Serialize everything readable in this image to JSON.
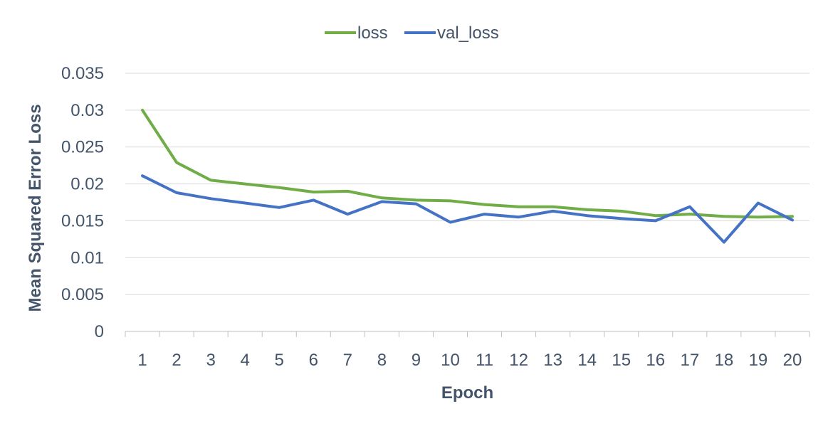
{
  "chart_data": {
    "type": "line",
    "title": "",
    "xlabel": "Epoch",
    "ylabel": "Mean Squared Error Loss",
    "categories": [
      "1",
      "2",
      "3",
      "4",
      "5",
      "6",
      "7",
      "8",
      "9",
      "10",
      "11",
      "12",
      "13",
      "14",
      "15",
      "16",
      "17",
      "18",
      "19",
      "20"
    ],
    "ylim": [
      0,
      0.035
    ],
    "yticks": [
      "0",
      "0.005",
      "0.01",
      "0.015",
      "0.02",
      "0.025",
      "0.03",
      "0.035"
    ],
    "grid": true,
    "legend_position": "top-center",
    "series": [
      {
        "name": "loss",
        "color": "#70ad47",
        "values": [
          0.03,
          0.0229,
          0.0205,
          0.02,
          0.0195,
          0.0189,
          0.019,
          0.0181,
          0.0178,
          0.0177,
          0.0172,
          0.0169,
          0.0169,
          0.0165,
          0.0163,
          0.0157,
          0.0159,
          0.0156,
          0.0155,
          0.0156
        ]
      },
      {
        "name": "val_loss",
        "color": "#4472c4",
        "values": [
          0.0211,
          0.0188,
          0.018,
          0.0174,
          0.0168,
          0.0178,
          0.0159,
          0.0176,
          0.0173,
          0.0148,
          0.0159,
          0.0155,
          0.0163,
          0.0157,
          0.0153,
          0.015,
          0.0169,
          0.0121,
          0.0174,
          0.0151
        ]
      }
    ]
  }
}
